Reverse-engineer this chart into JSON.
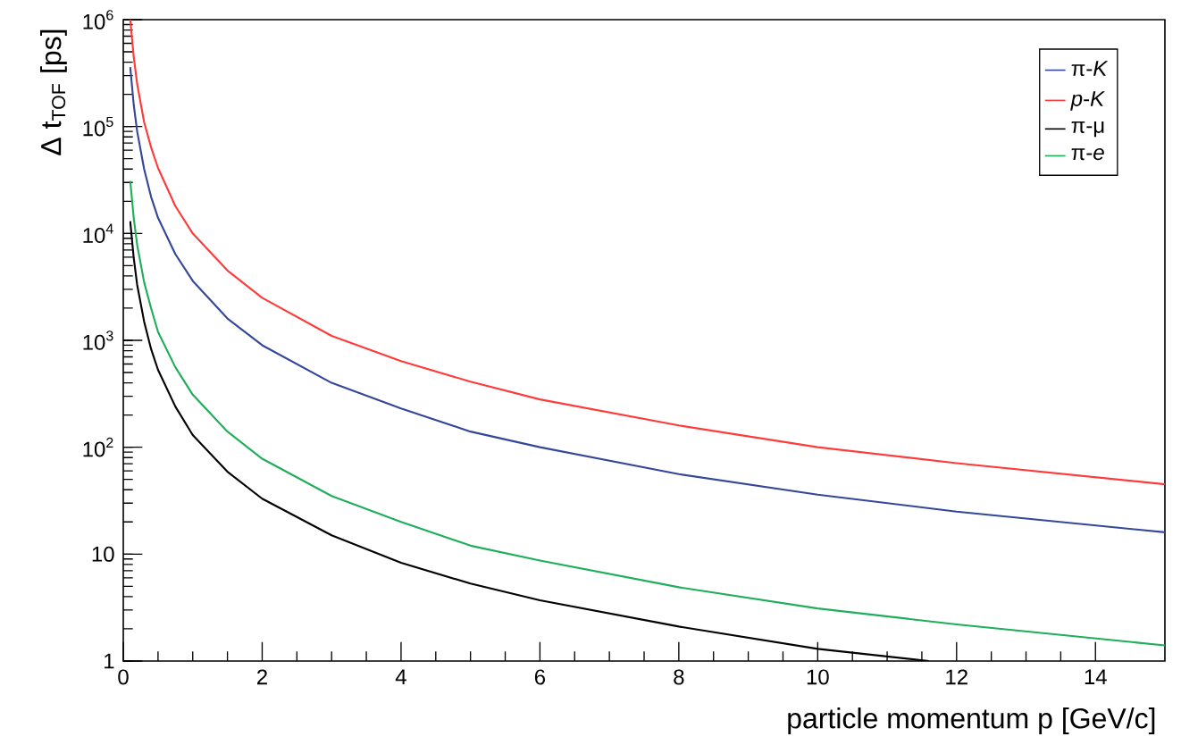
{
  "chart_data": {
    "type": "line",
    "xlabel": "particle momentum p [GeV/c]",
    "ylabel": "Δ t$_{TOF}$ [ps]",
    "log": "y",
    "legend": "top right",
    "marker": "none",
    "line_style": "solid",
    "grid": false,
    "xlim": [
      0,
      15
    ],
    "xticks": [
      0,
      2,
      4,
      6,
      8,
      10,
      12,
      14
    ],
    "ylim": [
      1,
      1000000
    ],
    "yticks": [
      1,
      10,
      {
        "value": 100,
        "label": "10$^{2}$"
      },
      {
        "value": 1000,
        "label": "10$^{3}$"
      },
      {
        "value": 10000,
        "label": "10$^{4}$"
      },
      {
        "value": 100000,
        "label": "10$^{5}$"
      },
      {
        "value": 1000000,
        "label": "10$^{6}$"
      }
    ],
    "series": [
      {
        "name": "π-*K*",
        "color": "#34479a",
        "x": [
          0.1,
          0.15,
          0.2,
          0.3,
          0.4,
          0.5,
          0.75,
          1,
          1.5,
          2,
          3,
          4,
          5,
          6,
          8,
          10,
          12,
          15
        ],
        "values": [
          360000,
          160000,
          90000,
          40000,
          22000,
          14000,
          6400,
          3600,
          1600,
          900,
          400,
          230,
          140,
          100,
          56,
          36,
          25,
          16
        ]
      },
      {
        "name": "*p*-*K*",
        "color": "#ff3a3a",
        "x": [
          0.1,
          0.15,
          0.2,
          0.3,
          0.4,
          0.5,
          0.75,
          1,
          1.5,
          2,
          3,
          4,
          5,
          6,
          8,
          10,
          12,
          15
        ],
        "values": [
          1000000,
          450000,
          250000,
          110000,
          64000,
          41000,
          18000,
          10000,
          4500,
          2500,
          1100,
          640,
          410,
          280,
          160,
          100,
          71,
          45
        ]
      },
      {
        "name": "π-μ",
        "color": "#000000",
        "x": [
          0.1,
          0.15,
          0.2,
          0.3,
          0.4,
          0.5,
          0.75,
          1,
          1.5,
          2,
          3,
          4,
          5,
          6,
          8,
          10,
          11.6
        ],
        "values": [
          13000,
          5900,
          3300,
          1500,
          830,
          530,
          240,
          130,
          59,
          33,
          15,
          8.3,
          5.3,
          3.7,
          2.1,
          1.3,
          1.0
        ]
      },
      {
        "name": "π-*e*",
        "color": "#1fae5a",
        "x": [
          0.1,
          0.15,
          0.2,
          0.3,
          0.4,
          0.5,
          0.75,
          1,
          1.5,
          2,
          3,
          4,
          5,
          6,
          8,
          10,
          12,
          15
        ],
        "values": [
          31000,
          14000,
          7800,
          3500,
          2000,
          1200,
          560,
          310,
          140,
          78,
          35,
          20,
          12,
          8.7,
          4.9,
          3.1,
          2.2,
          1.4
        ]
      }
    ]
  }
}
